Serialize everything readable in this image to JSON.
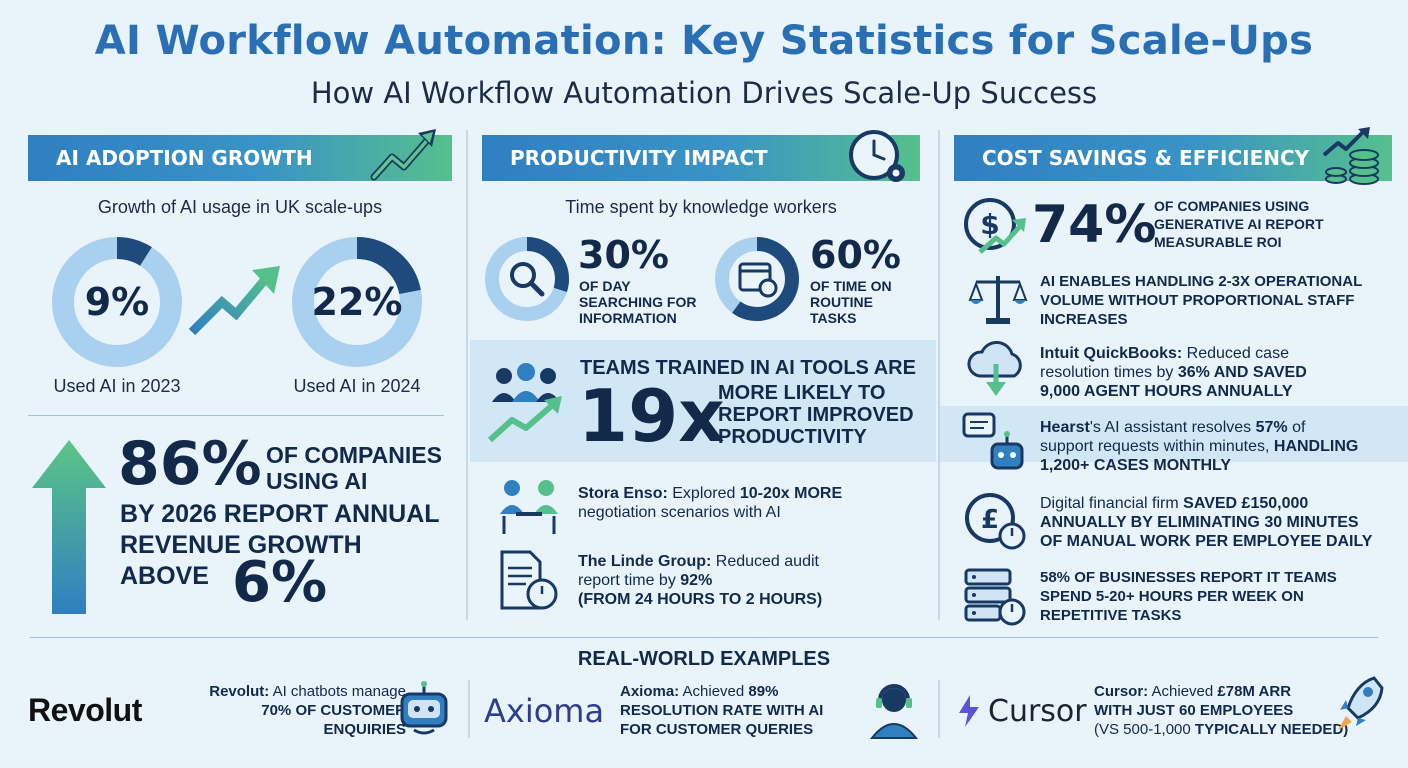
{
  "header": {
    "title": "AI Workflow Automation: Key Statistics for Scale-Ups",
    "subtitle": "How AI Workflow Automation Drives Scale-Up Success"
  },
  "colors": {
    "title_blue": "#2a6fb4",
    "navy": "#13294a",
    "banner_start": "#2f7fc1",
    "banner_end": "#56c08d",
    "donut_light": "#a9d0ee",
    "donut_dark": "#1f4a7c"
  },
  "adoption": {
    "banner": "AI ADOPTION GROWTH",
    "caption": "Growth of AI usage in UK scale-ups",
    "donut_2023": {
      "value_label": "9%",
      "fraction": 0.09,
      "caption": "Used AI in 2023"
    },
    "donut_2024": {
      "value_label": "22%",
      "fraction": 0.22,
      "caption": "Used AI in 2024"
    },
    "stat_big": "86%",
    "stat_line1": "OF COMPANIES",
    "stat_line2": "USING AI",
    "stat_line3": "BY 2026 REPORT ANNUAL",
    "stat_line4": "REVENUE GROWTH",
    "stat_line5": "ABOVE",
    "stat_big2": "6%"
  },
  "productivity": {
    "banner": "PRODUCTIVITY IMPACT",
    "caption": "Time spent by knowledge workers",
    "donut_a": {
      "value_label": "30%",
      "fraction": 0.3,
      "lines": [
        "OF DAY",
        "SEARCHING FOR",
        "INFORMATION"
      ]
    },
    "donut_b": {
      "value_label": "60%",
      "fraction": 0.6,
      "lines": [
        "OF TIME ON",
        "ROUTINE",
        "TASKS"
      ]
    },
    "teams_heading": "TEAMS TRAINED IN AI TOOLS ARE",
    "teams_big": "19x",
    "teams_lines": [
      "MORE LIKELY TO",
      "REPORT IMPROVED",
      "PRODUCTIVITY"
    ],
    "stora_name": "Stora Enso:",
    "stora_text1": " Explored ",
    "stora_bold": "10-20x MORE",
    "stora_text2": "negotiation scenarios with AI",
    "linde_name": "The Linde Group:",
    "linde_text1": " Reduced audit",
    "linde_text2": "report time by ",
    "linde_bold1": "92%",
    "linde_bold2": "(FROM 24 HOURS TO 2 HOURS)"
  },
  "cost": {
    "banner": "COST SAVINGS & EFFICIENCY",
    "roi_big": "74%",
    "roi_lines": [
      "OF COMPANIES USING",
      "GENERATIVE AI REPORT",
      "MEASURABLE ROI"
    ],
    "ops_lines": [
      "AI ENABLES HANDLING 2-3x OPERATIONAL",
      "VOLUME WITHOUT PROPORTIONAL STAFF",
      "INCREASES"
    ],
    "intuit_name": "Intuit QuickBooks:",
    "intuit_t1": " Reduced case",
    "intuit_t2": "resolution times by ",
    "intuit_b1": "36% AND SAVED",
    "intuit_b2": "9,000 AGENT HOURS ANNUALLY",
    "hearst_name": "Hearst",
    "hearst_t1": "'s AI assistant resolves ",
    "hearst_b1": "57%",
    "hearst_t2": " of",
    "hearst_t3": "support requests within minutes, ",
    "hearst_b2": "HANDLING",
    "hearst_b3": "1,200+ CASES MONTHLY",
    "digital_t1": "Digital financial firm ",
    "digital_b1": "SAVED £150,000",
    "digital_b2": "ANNUALLY BY ELIMINATING 30 MINUTES",
    "digital_b3": "OF MANUAL WORK PER EMPLOYEE DAILY",
    "it_lines": [
      "58% OF BUSINESSES REPORT IT TEAMS",
      "SPEND 5-20+ HOURS PER WEEK ON",
      "REPETITIVE TASKS"
    ]
  },
  "examples": {
    "heading": "REAL-WORLD EXAMPLES",
    "revolut": {
      "logo": "Revolut",
      "name": "Revolut:",
      "t1": " AI chatbots manage",
      "b1": "70% OF CUSTOMER",
      "b2": "ENQUIRIES"
    },
    "axioma": {
      "logo": "Axioma",
      "name": "Axioma:",
      "t1": " Achieved ",
      "b0": "89%",
      "b1": "RESOLUTION RATE WITH AI",
      "b2": "FOR CUSTOMER QUERIES"
    },
    "cursor": {
      "logo": "Cursor",
      "name": "Cursor:",
      "t1": " Achieved ",
      "b0": "£78M ARR",
      "b1": "WITH JUST 60 EMPLOYEES",
      "t2": "(VS 500-1,000 ",
      "b2": "TYPICALLY NEEDED)"
    }
  }
}
